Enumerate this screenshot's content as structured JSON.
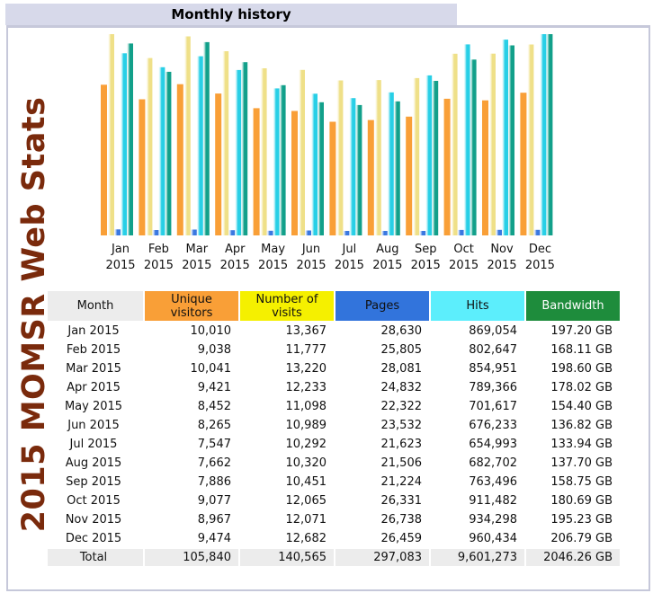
{
  "header": {
    "title": "Monthly history"
  },
  "side_title": "2015 MOMSR Web Stats",
  "colors": {
    "unique_visitors": "#f99f37",
    "visits": "#efe088",
    "pages": "#3a78e0",
    "hits": "#28cfe6",
    "bandwidth": "#12a08a"
  },
  "chart_data": {
    "type": "bar",
    "categories": [
      "Jan 2015",
      "Feb 2015",
      "Mar 2015",
      "Apr 2015",
      "May 2015",
      "Jun 2015",
      "Jul 2015",
      "Aug 2015",
      "Sep 2015",
      "Oct 2015",
      "Nov 2015",
      "Dec 2015"
    ],
    "month_labels": [
      "Jan",
      "Feb",
      "Mar",
      "Apr",
      "May",
      "Jun",
      "Jul",
      "Aug",
      "Sep",
      "Oct",
      "Nov",
      "Dec"
    ],
    "year_labels": [
      "2015",
      "2015",
      "2015",
      "2015",
      "2015",
      "2015",
      "2015",
      "2015",
      "2015",
      "2015",
      "2015",
      "2015"
    ],
    "series": [
      {
        "name": "Unique visitors",
        "values": [
          10010,
          9038,
          10041,
          9421,
          8452,
          8265,
          7547,
          7662,
          7886,
          9077,
          8967,
          9474
        ]
      },
      {
        "name": "Number of visits",
        "values": [
          13367,
          11777,
          13220,
          12233,
          11098,
          10989,
          10292,
          10320,
          10451,
          12065,
          12071,
          12682
        ]
      },
      {
        "name": "Pages",
        "values": [
          28630,
          25805,
          28081,
          24832,
          22322,
          23532,
          21623,
          21506,
          21224,
          26331,
          26738,
          26459
        ]
      },
      {
        "name": "Hits",
        "values": [
          869054,
          802647,
          854951,
          789366,
          701617,
          676233,
          654993,
          682702,
          763496,
          911482,
          934298,
          960434
        ]
      },
      {
        "name": "Bandwidth",
        "values": [
          197.2,
          168.11,
          198.6,
          178.02,
          154.4,
          136.82,
          133.94,
          137.7,
          158.75,
          180.69,
          195.23,
          206.79
        ]
      }
    ]
  },
  "table": {
    "headers": [
      "Month",
      "Unique visitors",
      "Number of visits",
      "Pages",
      "Hits",
      "Bandwidth"
    ],
    "rows": [
      [
        "Jan 2015",
        "10,010",
        "13,367",
        "28,630",
        "869,054",
        "197.20 GB"
      ],
      [
        "Feb 2015",
        "9,038",
        "11,777",
        "25,805",
        "802,647",
        "168.11 GB"
      ],
      [
        "Mar 2015",
        "10,041",
        "13,220",
        "28,081",
        "854,951",
        "198.60 GB"
      ],
      [
        "Apr 2015",
        "9,421",
        "12,233",
        "24,832",
        "789,366",
        "178.02 GB"
      ],
      [
        "May 2015",
        "8,452",
        "11,098",
        "22,322",
        "701,617",
        "154.40 GB"
      ],
      [
        "Jun 2015",
        "8,265",
        "10,989",
        "23,532",
        "676,233",
        "136.82 GB"
      ],
      [
        "Jul 2015",
        "7,547",
        "10,292",
        "21,623",
        "654,993",
        "133.94 GB"
      ],
      [
        "Aug 2015",
        "7,662",
        "10,320",
        "21,506",
        "682,702",
        "137.70 GB"
      ],
      [
        "Sep 2015",
        "7,886",
        "10,451",
        "21,224",
        "763,496",
        "158.75 GB"
      ],
      [
        "Oct 2015",
        "9,077",
        "12,065",
        "26,331",
        "911,482",
        "180.69 GB"
      ],
      [
        "Nov 2015",
        "8,967",
        "12,071",
        "26,738",
        "934,298",
        "195.23 GB"
      ],
      [
        "Dec 2015",
        "9,474",
        "12,682",
        "26,459",
        "960,434",
        "206.79 GB"
      ]
    ],
    "total": [
      "Total",
      "105,840",
      "140,565",
      "297,083",
      "9,601,273",
      "2046.26 GB"
    ]
  }
}
